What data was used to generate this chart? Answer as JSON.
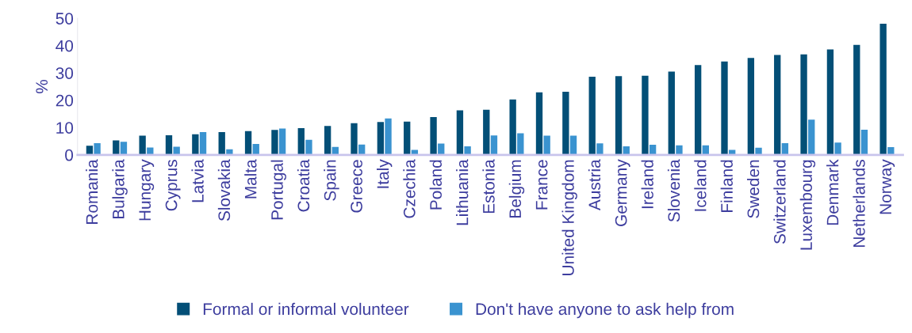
{
  "chart_data": {
    "type": "bar",
    "ylabel": "%",
    "categories": [
      "Romania",
      "Bulgaria",
      "Hungary",
      "Cyprus",
      "Latvia",
      "Slovakia",
      "Malta",
      "Portugal",
      "Croatia",
      "Spain",
      "Greece",
      "Italy",
      "Czechia",
      "Poland",
      "Lithuania",
      "Estonia",
      "Belgium",
      "France",
      "United Kingdom",
      "Austria",
      "Germany",
      "Ireland",
      "Slovenia",
      "Iceland",
      "Finland",
      "Sweden",
      "Switzerland",
      "Luxembourg",
      "Denmark",
      "Netherlands",
      "Norway"
    ],
    "series": [
      {
        "name": "Formal or informal volunteer",
        "color": "#034f77",
        "values": [
          3.3,
          5.3,
          7.0,
          7.2,
          7.5,
          8.3,
          8.7,
          9.1,
          9.8,
          10.6,
          11.6,
          12.0,
          12.2,
          13.8,
          16.3,
          16.5,
          20.3,
          22.9,
          23.1,
          28.6,
          28.8,
          29.0,
          30.5,
          32.9,
          34.2,
          35.5,
          36.6,
          36.8,
          38.6,
          40.3,
          48.0
        ]
      },
      {
        "name": "Don't have anyone to ask help from",
        "color": "#3a93d0",
        "values": [
          4.3,
          4.8,
          2.7,
          3.0,
          8.3,
          2.0,
          4.0,
          9.6,
          5.5,
          2.9,
          3.8,
          13.3,
          1.8,
          4.1,
          3.1,
          7.1,
          7.9,
          7.0,
          7.0,
          4.2,
          3.1,
          3.7,
          3.5,
          3.5,
          1.8,
          2.6,
          4.3,
          12.9,
          4.5,
          9.2,
          2.8
        ]
      }
    ],
    "ylim": [
      0,
      50
    ],
    "yticks": [
      0,
      10,
      20,
      30,
      40,
      50
    ],
    "grid": false,
    "legend": "bottom"
  }
}
